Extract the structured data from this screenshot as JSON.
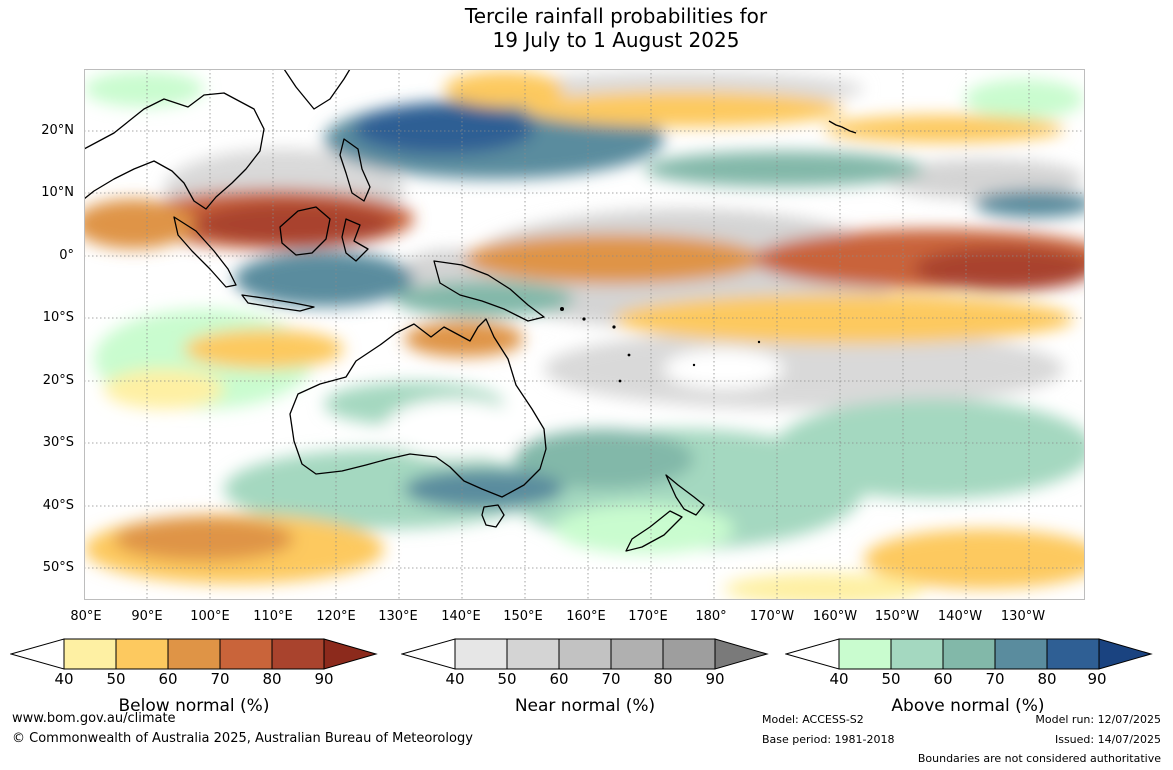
{
  "title": {
    "line1": "Tercile rainfall probabilities for",
    "line2": "19 July to 1 August 2025"
  },
  "map": {
    "lat_labels": [
      "20°N",
      "10°N",
      "0°",
      "10°S",
      "20°S",
      "30°S",
      "40°S",
      "50°S"
    ],
    "lon_labels": [
      "80°E",
      "90°E",
      "100°E",
      "110°E",
      "120°E",
      "130°E",
      "140°E",
      "150°E",
      "160°E",
      "170°E",
      "180°",
      "170°W",
      "160°W",
      "150°W",
      "140°W",
      "130°W"
    ],
    "background_color": "#ffffff",
    "grid_color": "#8a8a8a"
  },
  "colorbars": [
    {
      "title": "Below normal (%)",
      "ticks": [
        "40",
        "50",
        "60",
        "70",
        "80",
        "90"
      ],
      "colors": [
        "#fef0a3",
        "#fdc95f",
        "#df9446",
        "#c9643a",
        "#a9432d",
        "#8c2a1c"
      ]
    },
    {
      "title": "Near normal (%)",
      "ticks": [
        "40",
        "50",
        "60",
        "70",
        "80",
        "90"
      ],
      "colors": [
        "#e6e6e6",
        "#d4d4d4",
        "#c2c2c2",
        "#b0b0b0",
        "#9e9e9e",
        "#7a7a7a"
      ]
    },
    {
      "title": "Above normal (%)",
      "ticks": [
        "40",
        "50",
        "60",
        "70",
        "80",
        "90"
      ],
      "colors": [
        "#c9fccf",
        "#a4d8c0",
        "#82b8a9",
        "#5a8c9e",
        "#2f5f94",
        "#1a4380"
      ]
    }
  ],
  "footer": {
    "website": "www.bom.gov.au/climate",
    "copyright": "© Commonwealth of Australia 2025, Australian Bureau of Meteorology",
    "model": "Model: ACCESS-S2",
    "base_period": "Base period: 1981-2018",
    "model_run": "Model run: 12/07/2025",
    "issued": "Issued: 14/07/2025",
    "disclaimer": "Boundaries are not considered authoritative"
  }
}
